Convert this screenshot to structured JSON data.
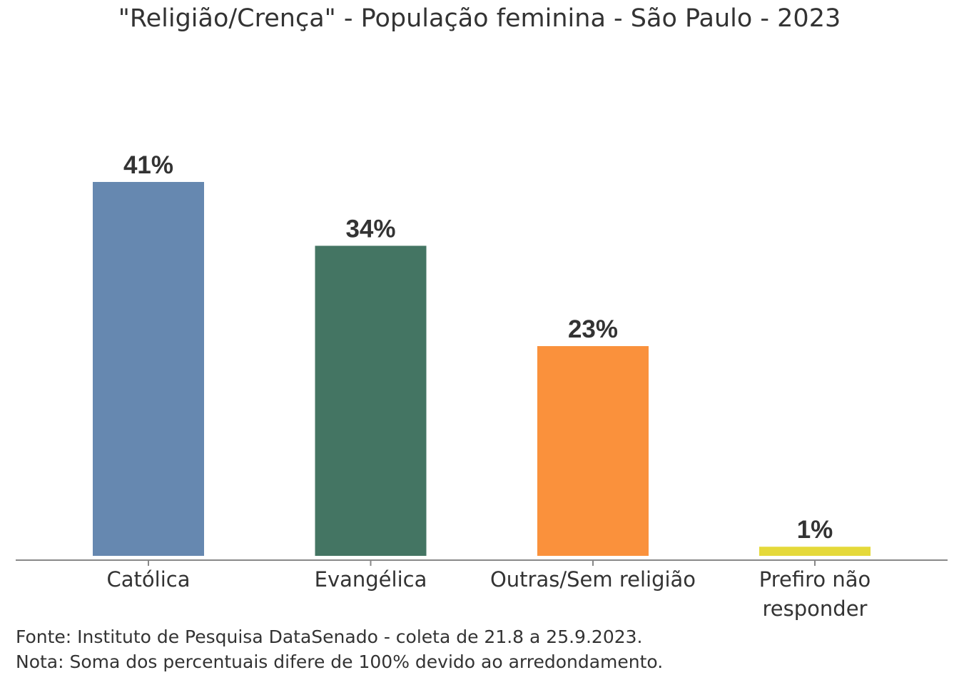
{
  "chart_data": {
    "type": "bar",
    "title": "\"Religião/Crença\" - População feminina - São Paulo - 2023",
    "categories": [
      "Católica",
      "Evangélica",
      "Outras/Sem religião",
      "Prefiro não responder"
    ],
    "category_lines": [
      [
        "Católica"
      ],
      [
        "Evangélica"
      ],
      [
        "Outras/Sem religião"
      ],
      [
        "Prefiro não",
        "responder"
      ]
    ],
    "values": [
      41,
      34,
      23,
      1
    ],
    "value_labels": [
      "41%",
      "34%",
      "23%",
      "1%"
    ],
    "colors": [
      "#6688b0",
      "#447563",
      "#fa913c",
      "#e5d93a"
    ],
    "xlabel": "",
    "ylabel": "",
    "ylim": [
      0,
      41
    ],
    "grid": false
  },
  "footer": {
    "source": "Fonte: Instituto de Pesquisa DataSenado - coleta de 21.8 a 25.9.2023.",
    "note": "Nota: Soma dos percentuais difere de 100% devido ao arredondamento."
  }
}
